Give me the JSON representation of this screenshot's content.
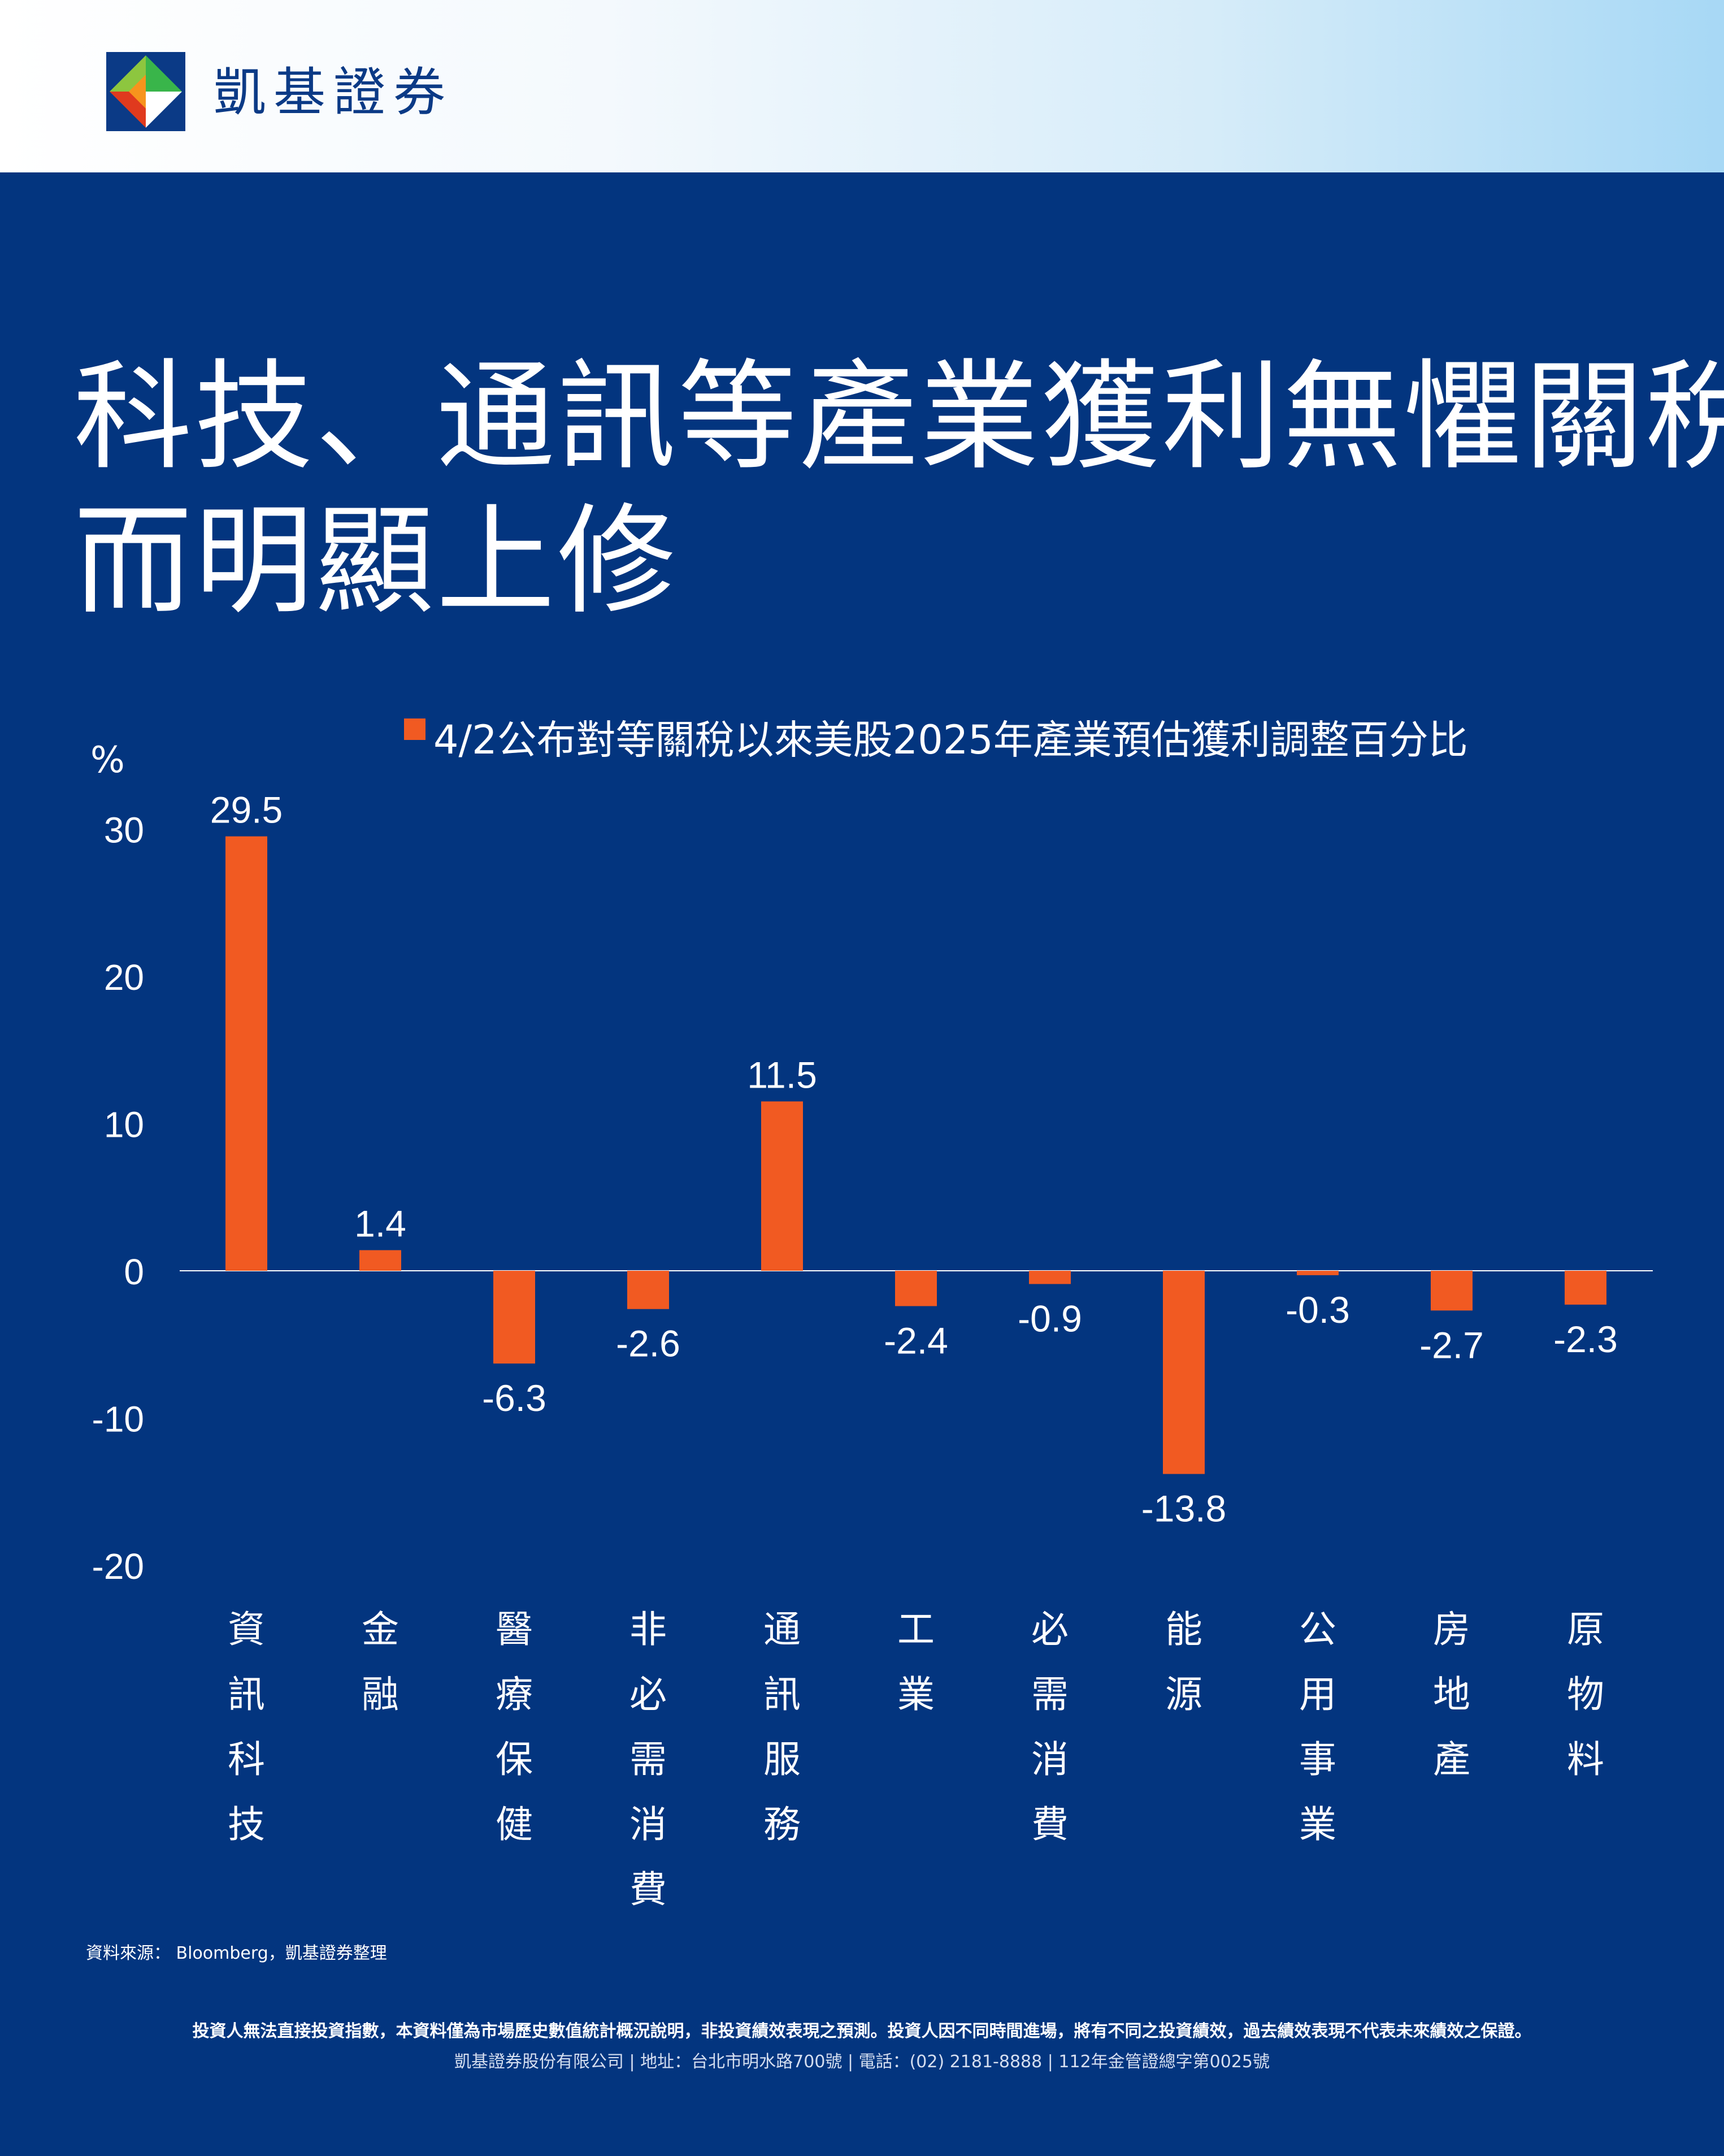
{
  "brand": {
    "name": "凱基證券",
    "colors": {
      "blue": "#0b3a86",
      "green": "#39b54a",
      "orange": "#f7941d",
      "red": "#e03a1e"
    }
  },
  "title": {
    "line1": "科技、通訊等產業獲利無懼關稅",
    "line2": "而明顯上修"
  },
  "chart_data": {
    "type": "bar",
    "legend": "4/2公布對等關稅以來美股2025年產業預估獲利調整百分比",
    "ylabel": "%",
    "ylim": [
      -20,
      30
    ],
    "yticks": [
      30,
      20,
      10,
      0,
      -10,
      -20
    ],
    "bar_color": "#f15a22",
    "categories": [
      "資訊科技",
      "金融",
      "醫療保健",
      "非必需消費",
      "通訊服務",
      "工業",
      "必需消費",
      "能源",
      "公用事業",
      "房地產",
      "原物料"
    ],
    "values": [
      29.5,
      1.4,
      -6.3,
      -2.6,
      11.5,
      -2.4,
      -0.9,
      -13.8,
      -0.3,
      -2.7,
      -2.3
    ],
    "value_labels": [
      "29.5",
      "1.4",
      "-6.3",
      "-2.6",
      "11.5",
      "-2.4",
      "-0.9",
      "-13.8",
      "-0.3",
      "-2.7",
      "-2.3"
    ]
  },
  "footer": {
    "source": "資料來源： Bloomberg，凱基證券整理",
    "disclaimer": "投資人無法直接投資指數，本資料僅為市場歷史數值統計概況說明，非投資績效表現之預測。投資人因不同時間進場，將有不同之投資績效，過去績效表現不代表未來績效之保證。",
    "company": "凱基證券股份有限公司 | 地址：台北市明水路700號 | 電話：(02) 2181-8888 | 112年金管證總字第0025號"
  }
}
